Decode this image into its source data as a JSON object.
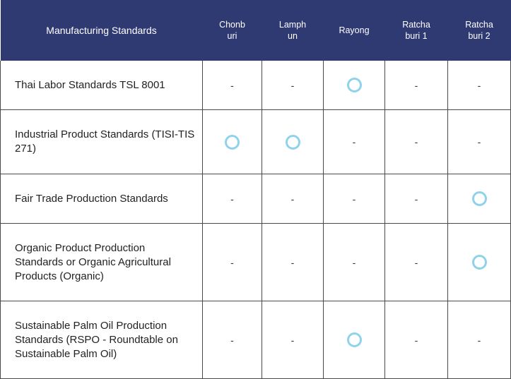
{
  "header": {
    "standards_label": "Manufacturing Standards",
    "locations": [
      "Chonb uri",
      "Lamph un",
      "Rayong",
      "Ratcha buri 1",
      "Ratcha buri  2"
    ]
  },
  "rows": [
    {
      "standard": "Thai Labor Standards TSL 8001",
      "marks": [
        "-",
        "-",
        "circle",
        "-",
        "-"
      ]
    },
    {
      "standard": "Industrial Product Standards (TISI-TIS 271)",
      "marks": [
        "circle",
        "circle",
        "-",
        "-",
        "-"
      ]
    },
    {
      "standard": "Fair Trade Production Standards",
      "marks": [
        "-",
        "-",
        "-",
        "-",
        "circle"
      ]
    },
    {
      "standard": "Organic Product Production Standards or Organic Agricultural Products (Organic)",
      "marks": [
        "-",
        "-",
        "-",
        "-",
        "circle"
      ]
    },
    {
      "standard": "Sustainable Palm Oil Production Standards (RSPO - Roundtable on Sustainable Palm Oil)",
      "marks": [
        "-",
        "-",
        "circle",
        "-",
        "-"
      ]
    }
  ],
  "symbols": {
    "dash": "-",
    "circle_icon": "circle-mark-icon",
    "circle_color": "#8fd3ea",
    "header_bg": "#2f3a73"
  }
}
